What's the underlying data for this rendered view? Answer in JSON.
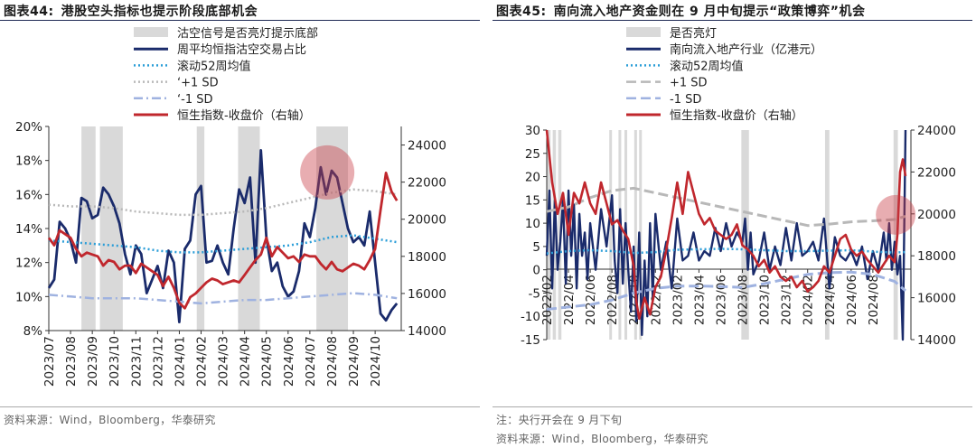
{
  "chart_data": [
    {
      "type": "line",
      "figure_label": "图表44:",
      "title": "港股空头指标也提示阶段底部机会",
      "xlabel": "",
      "ylabel": "",
      "ylim": [
        8,
        20
      ],
      "y_ticks": [
        "8%",
        "10%",
        "12%",
        "14%",
        "16%",
        "18%",
        "20%"
      ],
      "y_ticks_value": [
        8,
        10,
        12,
        14,
        16,
        18,
        20
      ],
      "y2lim": [
        14000,
        25000
      ],
      "y2_ticks": [
        "14000",
        "16000",
        "18000",
        "20000",
        "22000",
        "24000"
      ],
      "y2_ticks_value": [
        14000,
        16000,
        18000,
        20000,
        22000,
        24000
      ],
      "xlim": [
        0,
        16.2
      ],
      "x_ticks": [
        "2023/07",
        "2023/08",
        "2023/09",
        "2023/10",
        "2023/11",
        "2023/12",
        "2024/01",
        "2024/02",
        "2024/03",
        "2024/04",
        "2024/05",
        "2024/06",
        "2024/07",
        "2024/08",
        "2024/09",
        "2024/10"
      ],
      "legend": [
        "沽空信号是否亮灯提示底部",
        "周平均恒指沽空交易占比",
        "滚动52周均值",
        "‘+1 SD",
        "‘-1 SD",
        "恒生指数-收盘价（右轴）"
      ],
      "legend_position": "top-center",
      "signal_bands": [
        [
          1.5,
          2.15
        ],
        [
          2.35,
          3.4
        ],
        [
          6.8,
          7.15
        ],
        [
          8.7,
          9.7
        ],
        [
          12.3,
          13.75
        ]
      ],
      "highlight_circle": {
        "x": 12.8,
        "y": 17.3,
        "note": "bottom signal cluster"
      },
      "series": [
        {
          "name": "周平均恒指沽空交易占比",
          "color": "#1a2b6b",
          "axis": "left",
          "x": [
            0,
            0.25,
            0.5,
            0.75,
            1.0,
            1.25,
            1.5,
            1.75,
            2.0,
            2.25,
            2.5,
            2.75,
            3.0,
            3.25,
            3.5,
            3.75,
            4.0,
            4.25,
            4.5,
            4.75,
            5.0,
            5.25,
            5.5,
            5.75,
            6.0,
            6.25,
            6.5,
            6.75,
            7.0,
            7.25,
            7.5,
            7.75,
            8.0,
            8.25,
            8.5,
            8.75,
            9.0,
            9.25,
            9.5,
            9.75,
            10.0,
            10.25,
            10.5,
            10.75,
            11.0,
            11.25,
            11.5,
            11.75,
            12.0,
            12.25,
            12.5,
            12.75,
            13.0,
            13.25,
            13.5,
            13.75,
            14.0,
            14.25,
            14.5,
            14.75,
            15.0,
            15.25,
            15.5,
            15.75,
            16.0
          ],
          "y": [
            10.5,
            11.0,
            14.4,
            14.0,
            13.3,
            12.0,
            15.8,
            15.6,
            14.6,
            14.8,
            16.4,
            16.0,
            15.3,
            14.3,
            12.5,
            11.3,
            13.0,
            12.5,
            10.2,
            11.0,
            11.8,
            10.5,
            12.7,
            12.0,
            8.5,
            12.8,
            13.3,
            16.0,
            16.5,
            12.0,
            12.1,
            13.0,
            12.0,
            11.3,
            14.0,
            16.3,
            15.5,
            17.0,
            12.0,
            18.6,
            13.5,
            11.5,
            12.0,
            10.6,
            10.0,
            10.3,
            11.5,
            14.3,
            13.5,
            15.2,
            17.6,
            16.0,
            17.4,
            17.0,
            15.5,
            14.0,
            13.2,
            13.5,
            13.0,
            15.0,
            12.0,
            9.0,
            8.6,
            9.2,
            9.6
          ]
        },
        {
          "name": "滚动52周均值",
          "color": "#2c9ed8",
          "axis": "left",
          "x": [
            0,
            1,
            2,
            3,
            4,
            5,
            6,
            7,
            8,
            9,
            10,
            11,
            12,
            13,
            14,
            15,
            16
          ],
          "y": [
            13.3,
            13.2,
            13.1,
            13.0,
            12.9,
            12.7,
            12.6,
            12.6,
            12.7,
            12.8,
            12.9,
            13.0,
            13.2,
            13.5,
            13.6,
            13.4,
            13.2
          ]
        },
        {
          "name": "‘+1 SD",
          "color": "#b8b8b8",
          "axis": "left",
          "x": [
            0,
            1,
            2,
            3,
            4,
            5,
            6,
            7,
            8,
            9,
            10,
            11,
            12,
            13,
            14,
            15,
            16
          ],
          "y": [
            15.4,
            15.3,
            15.3,
            15.2,
            15.0,
            14.9,
            14.8,
            14.8,
            14.9,
            15.0,
            15.2,
            15.5,
            15.8,
            16.1,
            16.3,
            16.2,
            16.0
          ]
        },
        {
          "name": "‘-1 SD",
          "color": "#9fb2e0",
          "axis": "left",
          "x": [
            0,
            1,
            2,
            3,
            4,
            5,
            6,
            7,
            8,
            9,
            10,
            11,
            12,
            13,
            14,
            15,
            16
          ],
          "y": [
            10.1,
            10.0,
            9.9,
            9.9,
            9.9,
            9.8,
            9.7,
            9.6,
            9.7,
            9.8,
            9.8,
            9.9,
            10.0,
            10.1,
            10.2,
            10.1,
            9.9
          ]
        },
        {
          "name": "恒生指数-收盘价（右轴）",
          "color": "#c0272d",
          "axis": "right",
          "x": [
            0,
            0.25,
            0.5,
            0.75,
            1.0,
            1.25,
            1.5,
            1.75,
            2.0,
            2.25,
            2.5,
            2.75,
            3.0,
            3.25,
            3.5,
            3.75,
            4.0,
            4.25,
            4.5,
            4.75,
            5.0,
            5.25,
            5.5,
            5.75,
            6.0,
            6.25,
            6.5,
            6.75,
            7.0,
            7.25,
            7.5,
            7.75,
            8.0,
            8.25,
            8.5,
            8.75,
            9.0,
            9.25,
            9.5,
            9.75,
            10.0,
            10.25,
            10.5,
            10.75,
            11.0,
            11.25,
            11.5,
            11.75,
            12.0,
            12.25,
            12.5,
            12.75,
            13.0,
            13.25,
            13.5,
            13.75,
            14.0,
            14.25,
            14.5,
            14.75,
            15.0,
            15.25,
            15.5,
            15.75,
            16.0
          ],
          "y": [
            19000,
            18600,
            19400,
            19200,
            19000,
            18400,
            18000,
            18200,
            18100,
            18000,
            17500,
            17800,
            17700,
            17300,
            17500,
            17500,
            17100,
            17600,
            17400,
            17200,
            17000,
            16400,
            16900,
            16300,
            15500,
            15200,
            15800,
            16000,
            16300,
            16600,
            16800,
            16700,
            16500,
            16600,
            16700,
            16600,
            17000,
            17400,
            17800,
            18100,
            19000,
            18000,
            18500,
            18200,
            17900,
            18000,
            17700,
            18100,
            18000,
            18000,
            17600,
            17300,
            17700,
            17300,
            17200,
            17400,
            17600,
            17500,
            17300,
            17800,
            18400,
            20500,
            22500,
            21500,
            21000
          ]
        }
      ]
    },
    {
      "type": "line",
      "figure_label": "图表45:",
      "title": "南向流入地产资金则在 9 月中旬提示“政策博弈”机会",
      "xlabel": "",
      "ylabel": "",
      "ylim": [
        -15,
        30
      ],
      "y_ticks": [
        "-15",
        "-10",
        "-5",
        "0",
        "5",
        "10",
        "15",
        "20",
        "25",
        "30"
      ],
      "y_ticks_value": [
        -15,
        -10,
        -5,
        0,
        5,
        10,
        15,
        20,
        25,
        30
      ],
      "y2lim": [
        14000,
        24000
      ],
      "y2_ticks": [
        "14000",
        "16000",
        "18000",
        "20000",
        "22000",
        "24000"
      ],
      "y2_ticks_value": [
        14000,
        16000,
        18000,
        20000,
        22000,
        24000
      ],
      "xlim": [
        0,
        33.5
      ],
      "x_ticks": [
        "2022/02",
        "2022/04",
        "2022/06",
        "2022/08",
        "2022/10",
        "2022/12",
        "2023/02",
        "2023/04",
        "2023/06",
        "2023/08",
        "2023/10",
        "2023/12",
        "2024/02",
        "2024/04",
        "2024/06",
        "2024/08"
      ],
      "x_ticks_value": [
        0,
        2,
        4,
        6,
        8,
        10,
        12,
        14,
        16,
        18,
        20,
        22,
        24,
        26,
        28,
        30
      ],
      "legend": [
        "是否亮灯",
        "南向流入地产行业（亿港元）",
        "滚动52周均值",
        "+1 SD",
        "-1 SD",
        "恒生指数-收盘价（右轴）"
      ],
      "legend_position": "top-center",
      "signal_bands": [
        [
          0.0,
          0.35
        ],
        [
          0.55,
          0.85
        ],
        [
          1.05,
          1.35
        ],
        [
          5.75,
          6.0
        ],
        [
          6.6,
          6.85
        ],
        [
          7.15,
          7.4
        ],
        [
          8.05,
          8.3
        ],
        [
          8.5,
          8.75
        ],
        [
          17.9,
          18.6
        ],
        [
          25.6,
          26.0
        ],
        [
          31.9,
          32.3
        ]
      ],
      "highlight_circle": {
        "x": 32.1,
        "y": 11.8,
        "note": "policy play signal"
      },
      "series": [
        {
          "name": "南向流入地产行业（亿港元）",
          "color": "#1a2b6b",
          "axis": "left",
          "x": [
            0,
            0.25,
            0.5,
            0.75,
            1.0,
            1.25,
            1.5,
            1.75,
            2.0,
            2.25,
            2.5,
            2.75,
            3.0,
            3.25,
            3.5,
            3.75,
            4.0,
            4.5,
            5.0,
            5.5,
            6.0,
            6.25,
            6.5,
            6.75,
            7.0,
            7.25,
            7.5,
            7.75,
            8.0,
            8.25,
            8.5,
            8.75,
            9.0,
            9.25,
            9.5,
            9.75,
            10.0,
            10.5,
            11.0,
            11.5,
            12.0,
            12.5,
            13.0,
            13.5,
            14.0,
            14.5,
            15.0,
            15.5,
            16.0,
            16.5,
            17.0,
            17.5,
            18.0,
            18.25,
            18.5,
            18.75,
            19.0,
            19.5,
            20.0,
            20.5,
            21.0,
            21.5,
            22.0,
            22.5,
            23.0,
            23.5,
            24.0,
            24.5,
            25.0,
            25.5,
            26.0,
            26.5,
            27.0,
            27.5,
            28.0,
            28.5,
            29.0,
            29.5,
            30.0,
            30.5,
            31.0,
            31.25,
            31.5,
            31.75,
            32.0,
            32.25,
            32.5,
            32.75,
            33.0
          ],
          "y": [
            3,
            17,
            -4,
            15,
            0,
            6,
            15,
            -3,
            17,
            3,
            14,
            -4,
            12,
            3,
            8,
            -2,
            10,
            0,
            13,
            5,
            16,
            2,
            -5,
            13,
            -3,
            10,
            0,
            -9,
            5,
            -11,
            8,
            -14,
            2,
            -10,
            10,
            -6,
            12,
            0,
            6,
            -4,
            11,
            2,
            3,
            8,
            2,
            4,
            3,
            9,
            4,
            10,
            5,
            8,
            6,
            11,
            0,
            8,
            -1,
            2,
            8,
            0,
            5,
            1,
            9,
            2,
            10,
            3,
            4,
            6,
            2,
            11,
            -4,
            7,
            3,
            2,
            4,
            1,
            5,
            -2,
            4,
            0,
            8,
            2,
            10,
            0,
            6,
            -1,
            3,
            -15,
            30
          ]
        },
        {
          "name": "滚动52周均值",
          "color": "#2c9ed8",
          "axis": "left",
          "x": [
            0,
            2,
            4,
            6,
            8,
            10,
            12,
            14,
            16,
            18,
            20,
            22,
            24,
            26,
            28,
            30,
            32,
            33
          ],
          "y": [
            3.5,
            4.0,
            4.2,
            4.0,
            3.6,
            3.8,
            4.3,
            4.4,
            4.5,
            4.4,
            4.2,
            4.0,
            4.0,
            4.1,
            4.2,
            3.9,
            3.7,
            3.8
          ]
        },
        {
          "name": "+1 SD",
          "color": "#b8b8b8",
          "axis": "left",
          "x": [
            0,
            2,
            4,
            6,
            8,
            10,
            12,
            14,
            16,
            18,
            20,
            22,
            24,
            26,
            28,
            30,
            32,
            33
          ],
          "y": [
            12.5,
            13.5,
            15.5,
            17.0,
            17.5,
            16.5,
            15.5,
            14.5,
            13.5,
            12.5,
            11.5,
            10.5,
            9.5,
            9.8,
            10.3,
            10.5,
            10.8,
            11.5
          ]
        },
        {
          "name": "-1 SD",
          "color": "#9fb2e0",
          "axis": "left",
          "x": [
            0,
            2,
            4,
            6,
            8,
            10,
            12,
            14,
            16,
            18,
            20,
            22,
            24,
            26,
            28,
            30,
            32,
            33
          ],
          "y": [
            -8.5,
            -8.0,
            -7.5,
            -6.5,
            -5.0,
            -4.0,
            -3.5,
            -3.5,
            -3.6,
            -3.8,
            -3.0,
            -2.0,
            -1.0,
            -0.6,
            -0.5,
            -1.0,
            -2.5,
            -4.5
          ]
        },
        {
          "name": "恒生指数-收盘价（右轴）",
          "color": "#c0272d",
          "axis": "right",
          "x": [
            0,
            0.5,
            1.0,
            1.5,
            2.0,
            2.5,
            3.0,
            3.5,
            4.0,
            4.5,
            5.0,
            5.5,
            6.0,
            6.5,
            7.0,
            7.5,
            8.0,
            8.25,
            8.5,
            9.0,
            9.5,
            10.0,
            10.5,
            11.0,
            11.5,
            12.0,
            12.5,
            13.0,
            13.5,
            14.0,
            14.5,
            15.0,
            15.5,
            16.0,
            16.5,
            17.0,
            17.5,
            18.0,
            18.5,
            19.0,
            19.5,
            20.0,
            20.5,
            21.0,
            21.5,
            22.0,
            22.5,
            23.0,
            23.5,
            24.0,
            24.5,
            25.0,
            25.5,
            26.0,
            26.5,
            27.0,
            27.5,
            28.0,
            28.5,
            29.0,
            29.5,
            30.0,
            30.5,
            31.0,
            31.5,
            32.0,
            32.25,
            32.5,
            32.75,
            33.0
          ],
          "y": [
            24000,
            21500,
            20000,
            21000,
            19000,
            21000,
            20500,
            21500,
            20500,
            20000,
            21500,
            20500,
            19500,
            19700,
            19200,
            18800,
            17500,
            15800,
            15000,
            16000,
            15200,
            16500,
            17000,
            18300,
            19800,
            21500,
            20000,
            22000,
            21000,
            20000,
            19500,
            19800,
            19200,
            19000,
            18800,
            19000,
            19500,
            18500,
            18300,
            18000,
            17500,
            17800,
            17200,
            17500,
            17000,
            16800,
            17000,
            16500,
            16800,
            16300,
            16500,
            16800,
            17500,
            17200,
            18000,
            18800,
            19000,
            18300,
            18000,
            18200,
            17800,
            17500,
            17200,
            17600,
            18000,
            17700,
            19000,
            22000,
            22600,
            21800
          ]
        }
      ]
    }
  ],
  "panels": [
    {
      "source": "资料来源：Wind，Bloomberg，华泰研究",
      "note": ""
    },
    {
      "source": "资料来源：Wind，Bloomberg，华泰研究",
      "note": "注：央行开会在 9 月下旬"
    }
  ]
}
